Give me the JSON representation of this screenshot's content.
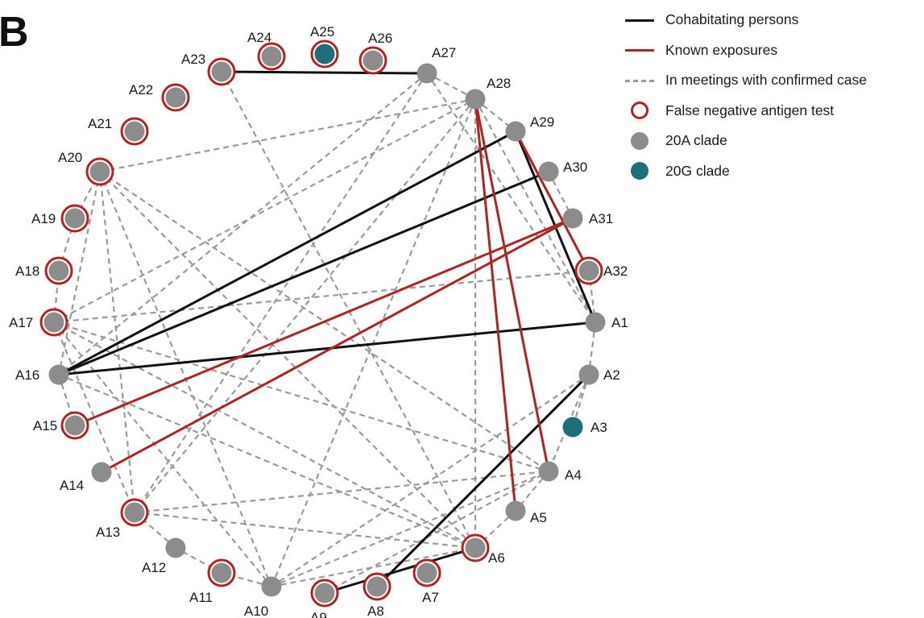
{
  "panel_label": "B",
  "legend": {
    "cohabitating": "Cohabitating persons",
    "exposures": "Known exposures",
    "meetings": "In meetings with confirmed case",
    "false_negative": "False negative antigen test",
    "clade_20a": "20A clade",
    "clade_20g": "20G clade"
  },
  "colors": {
    "cohabitating": "#111111",
    "exposure": "#b22222",
    "meeting": "#9a9a9a",
    "node_20A": "#8c8c8c",
    "node_20G": "#1f6f78",
    "false_negative_ring": "#b22222"
  },
  "nodes": [
    {
      "id": "A1",
      "clade": "20A",
      "false_negative": false
    },
    {
      "id": "A2",
      "clade": "20A",
      "false_negative": false
    },
    {
      "id": "A3",
      "clade": "20G",
      "false_negative": false
    },
    {
      "id": "A4",
      "clade": "20A",
      "false_negative": false
    },
    {
      "id": "A5",
      "clade": "20A",
      "false_negative": false
    },
    {
      "id": "A6",
      "clade": "20A",
      "false_negative": true
    },
    {
      "id": "A7",
      "clade": "20A",
      "false_negative": true
    },
    {
      "id": "A8",
      "clade": "20A",
      "false_negative": true
    },
    {
      "id": "A9",
      "clade": "20A",
      "false_negative": true
    },
    {
      "id": "A10",
      "clade": "20A",
      "false_negative": false
    },
    {
      "id": "A11",
      "clade": "20A",
      "false_negative": true
    },
    {
      "id": "A12",
      "clade": "20A",
      "false_negative": false
    },
    {
      "id": "A13",
      "clade": "20A",
      "false_negative": true
    },
    {
      "id": "A14",
      "clade": "20A",
      "false_negative": false
    },
    {
      "id": "A15",
      "clade": "20A",
      "false_negative": true
    },
    {
      "id": "A16",
      "clade": "20A",
      "false_negative": false
    },
    {
      "id": "A17",
      "clade": "20A",
      "false_negative": true
    },
    {
      "id": "A18",
      "clade": "20A",
      "false_negative": true
    },
    {
      "id": "A19",
      "clade": "20A",
      "false_negative": true
    },
    {
      "id": "A20",
      "clade": "20A",
      "false_negative": true
    },
    {
      "id": "A21",
      "clade": "20A",
      "false_negative": true
    },
    {
      "id": "A22",
      "clade": "20A",
      "false_negative": true
    },
    {
      "id": "A23",
      "clade": "20A",
      "false_negative": true
    },
    {
      "id": "A24",
      "clade": "20A",
      "false_negative": true
    },
    {
      "id": "A25",
      "clade": "20G",
      "false_negative": true
    },
    {
      "id": "A26",
      "clade": "20A",
      "false_negative": true
    },
    {
      "id": "A27",
      "clade": "20A",
      "false_negative": false
    },
    {
      "id": "A28",
      "clade": "20A",
      "false_negative": false
    },
    {
      "id": "A29",
      "clade": "20A",
      "false_negative": false
    },
    {
      "id": "A30",
      "clade": "20A",
      "false_negative": false
    },
    {
      "id": "A31",
      "clade": "20A",
      "false_negative": false
    },
    {
      "id": "A32",
      "clade": "20A",
      "false_negative": true
    }
  ],
  "edges": {
    "cohabitating": [
      [
        "A23",
        "A27"
      ],
      [
        "A16",
        "A29"
      ],
      [
        "A16",
        "A30"
      ],
      [
        "A16",
        "A1"
      ],
      [
        "A29",
        "A1"
      ],
      [
        "A2",
        "A8"
      ],
      [
        "A9",
        "A6"
      ]
    ],
    "exposure": [
      [
        "A28",
        "A4"
      ],
      [
        "A28",
        "A5"
      ],
      [
        "A31",
        "A15"
      ],
      [
        "A31",
        "A14"
      ],
      [
        "A29",
        "A32"
      ]
    ],
    "meeting": [
      [
        "A20",
        "A28"
      ],
      [
        "A20",
        "A16"
      ],
      [
        "A20",
        "A13"
      ],
      [
        "A20",
        "A10"
      ],
      [
        "A20",
        "A6"
      ],
      [
        "A20",
        "A4"
      ],
      [
        "A17",
        "A32"
      ],
      [
        "A17",
        "A4"
      ],
      [
        "A17",
        "A6"
      ],
      [
        "A17",
        "A10"
      ],
      [
        "A17",
        "A28"
      ],
      [
        "A23",
        "A6"
      ],
      [
        "A27",
        "A1"
      ],
      [
        "A27",
        "A16"
      ],
      [
        "A27",
        "A13"
      ],
      [
        "A28",
        "A13"
      ],
      [
        "A28",
        "A10"
      ],
      [
        "A28",
        "A6"
      ],
      [
        "A28",
        "A1"
      ],
      [
        "A13",
        "A4"
      ],
      [
        "A13",
        "A6"
      ],
      [
        "A10",
        "A4"
      ],
      [
        "A10",
        "A2"
      ],
      [
        "A16",
        "A6"
      ],
      [
        "A16",
        "A15"
      ],
      [
        "A17",
        "A13"
      ],
      [
        "A2",
        "A4"
      ],
      [
        "A2",
        "A3"
      ],
      [
        "A1",
        "A2"
      ],
      [
        "A4",
        "A5"
      ],
      [
        "A5",
        "A6"
      ],
      [
        "A10",
        "A11"
      ],
      [
        "A11",
        "A12"
      ],
      [
        "A12",
        "A13"
      ],
      [
        "A17",
        "A18"
      ],
      [
        "A18",
        "A19"
      ],
      [
        "A19",
        "A20"
      ],
      [
        "A27",
        "A28"
      ],
      [
        "A28",
        "A29"
      ],
      [
        "A30",
        "A31"
      ],
      [
        "A32",
        "A1"
      ],
      [
        "A9",
        "A4"
      ],
      [
        "A10",
        "A6"
      ]
    ]
  }
}
